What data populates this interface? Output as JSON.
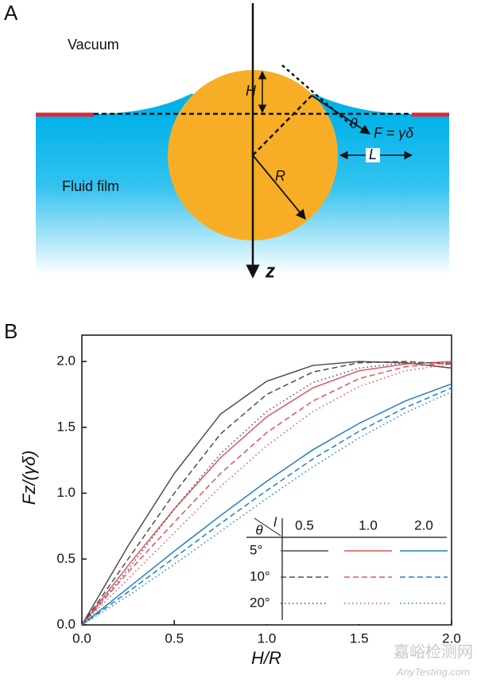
{
  "panel_a": {
    "label": "A",
    "vacuum": "Vacuum",
    "fluid": "Fluid film",
    "h": "H",
    "theta": "θ",
    "force": "F = γδ",
    "l": "L",
    "r": "R",
    "z": "z"
  },
  "chart_data": {
    "type": "line",
    "panel_label": "B",
    "xlabel": "H/R",
    "ylabel": "Fz/(γδ)",
    "x": [
      0,
      0.25,
      0.5,
      0.75,
      1.0,
      1.25,
      1.5,
      1.75,
      2.0
    ],
    "xlim": [
      0,
      2.0
    ],
    "ylim": [
      0,
      2.2
    ],
    "xticks": [
      {
        "value": 0,
        "label": "0.0"
      },
      {
        "value": 0.5,
        "label": "0.5"
      },
      {
        "value": 1,
        "label": "1.0"
      },
      {
        "value": 1.5,
        "label": "1.5"
      },
      {
        "value": 2,
        "label": "2.0"
      }
    ],
    "yticks": [
      {
        "value": 0,
        "label": "0.0"
      },
      {
        "value": 0.5,
        "label": "0.5"
      },
      {
        "value": 1,
        "label": "1.0"
      },
      {
        "value": 1.5,
        "label": "1.5"
      },
      {
        "value": 2,
        "label": "2.0"
      }
    ],
    "legend": {
      "theta_label": "θ",
      "l_label": "l",
      "columns": [
        "0.5",
        "1.0",
        "2.0"
      ],
      "rows": [
        "5°",
        "10°",
        "20°"
      ]
    },
    "series": [
      {
        "color": "#4d4d4d",
        "line_style": "solid",
        "values": [
          0,
          0.6,
          1.15,
          1.6,
          1.85,
          1.97,
          2.0,
          1.99,
          1.95
        ]
      },
      {
        "color": "#e8505b",
        "line_style": "solid",
        "values": [
          0,
          0.45,
          0.88,
          1.27,
          1.58,
          1.8,
          1.93,
          1.98,
          2.0
        ]
      },
      {
        "color": "#1f7fc4",
        "line_style": "solid",
        "values": [
          0,
          0.28,
          0.56,
          0.83,
          1.09,
          1.33,
          1.53,
          1.7,
          1.83
        ]
      },
      {
        "color": "#4d4d4d",
        "line_style": "dashed",
        "values": [
          0,
          0.5,
          1.0,
          1.45,
          1.75,
          1.92,
          1.99,
          2.0,
          1.98
        ]
      },
      {
        "color": "#e8505b",
        "line_style": "dashed",
        "values": [
          0,
          0.4,
          0.78,
          1.15,
          1.46,
          1.7,
          1.87,
          1.96,
          1.99
        ]
      },
      {
        "color": "#1f7fc4",
        "line_style": "dashed",
        "values": [
          0,
          0.25,
          0.51,
          0.77,
          1.02,
          1.26,
          1.47,
          1.65,
          1.8
        ]
      },
      {
        "color": "#4d4d4d",
        "line_style": "dotted",
        "values": [
          0,
          0.42,
          0.88,
          1.3,
          1.62,
          1.84,
          1.95,
          1.99,
          1.99
        ]
      },
      {
        "color": "#e8505b",
        "line_style": "dotted",
        "values": [
          0,
          0.35,
          0.7,
          1.05,
          1.36,
          1.62,
          1.81,
          1.93,
          1.98
        ]
      },
      {
        "color": "#1f7fc4",
        "line_style": "dotted",
        "values": [
          0,
          0.22,
          0.46,
          0.71,
          0.96,
          1.2,
          1.42,
          1.61,
          1.77
        ]
      }
    ]
  },
  "watermark": {
    "cn": "嘉峪检测网",
    "en": "AnyTesting.com"
  }
}
